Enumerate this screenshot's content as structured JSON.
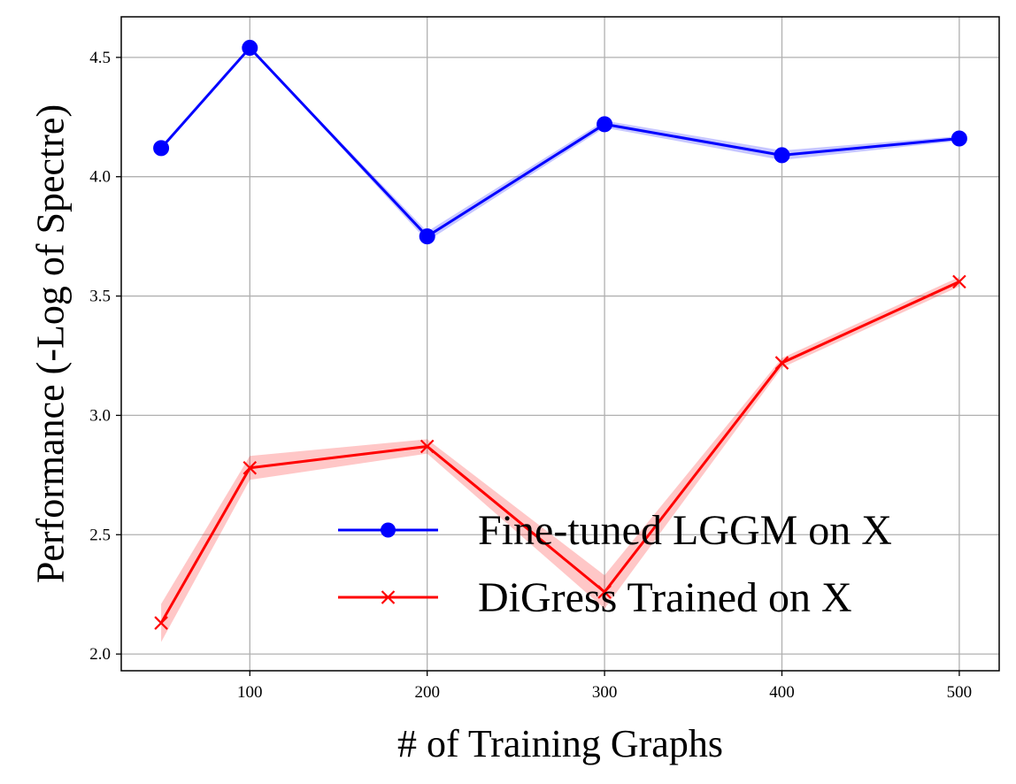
{
  "chart_data": {
    "type": "line",
    "xlabel": "# of Training Graphs",
    "ylabel": "Performance (-Log of Spectre)",
    "xlim": [
      27.5,
      522.5
    ],
    "ylim": [
      1.93,
      4.67
    ],
    "xticks": [
      100,
      200,
      300,
      400,
      500
    ],
    "yticks": [
      2.0,
      2.5,
      3.0,
      3.5,
      4.0,
      4.5
    ],
    "ytick_labels": [
      "2.0",
      "2.5",
      "3.0",
      "3.5",
      "4.0",
      "4.5"
    ],
    "grid": true,
    "legend_position": "lower-right",
    "x": [
      50,
      100,
      200,
      300,
      400,
      500
    ],
    "series": [
      {
        "name": "Fine-tuned LGGM on X",
        "color": "#0000ff",
        "marker": "circle",
        "values": [
          4.12,
          4.54,
          3.75,
          4.22,
          4.09,
          4.16
        ],
        "band": [
          0.0,
          0.0,
          0.02,
          0.015,
          0.02,
          0.01
        ]
      },
      {
        "name": "DiGress Trained on X",
        "color": "#ff0000",
        "marker": "x",
        "values": [
          2.13,
          2.78,
          2.87,
          2.26,
          3.22,
          3.56
        ],
        "band": [
          0.08,
          0.05,
          0.03,
          0.07,
          0.02,
          0.02
        ]
      }
    ]
  }
}
